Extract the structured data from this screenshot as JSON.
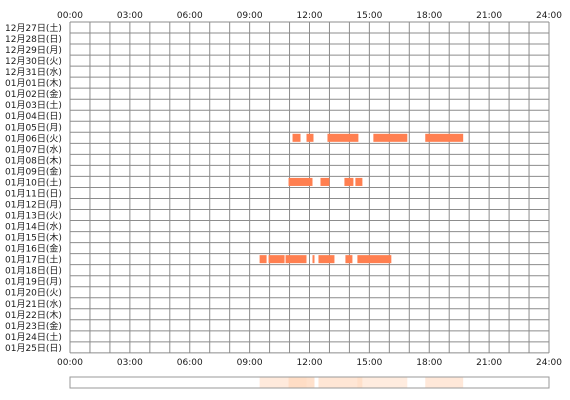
{
  "chart_data": {
    "type": "heatmap",
    "x_unit": "hours",
    "x_ticks": [
      "00:00",
      "03:00",
      "06:00",
      "09:00",
      "12:00",
      "15:00",
      "18:00",
      "21:00",
      "24:00"
    ],
    "xlim": [
      0,
      24
    ],
    "grid": true,
    "rows": [
      "12月27日(土)",
      "12月28日(日)",
      "12月29日(月)",
      "12月30日(火)",
      "12月31日(水)",
      "01月01日(木)",
      "01月02日(金)",
      "01月03日(土)",
      "01月04日(日)",
      "01月05日(月)",
      "01月06日(火)",
      "01月07日(水)",
      "01月08日(木)",
      "01月09日(金)",
      "01月10日(土)",
      "01月11日(日)",
      "01月12日(月)",
      "01月13日(火)",
      "01月14日(水)",
      "01月15日(木)",
      "01月16日(金)",
      "01月17日(土)",
      "01月18日(日)",
      "01月19日(月)",
      "01月20日(火)",
      "01月21日(水)",
      "01月22日(木)",
      "01月23日(金)",
      "01月24日(土)",
      "01月25日(日)"
    ],
    "activity_color": "#ff7f50",
    "summary_color": "#ffd9bf",
    "activity": [
      {
        "row": 10,
        "start": 11.15,
        "end": 11.55
      },
      {
        "row": 10,
        "start": 11.85,
        "end": 12.2
      },
      {
        "row": 10,
        "start": 12.9,
        "end": 14.45
      },
      {
        "row": 10,
        "start": 15.2,
        "end": 16.9
      },
      {
        "row": 10,
        "start": 17.8,
        "end": 19.7
      },
      {
        "row": 14,
        "start": 10.95,
        "end": 12.15
      },
      {
        "row": 14,
        "start": 12.55,
        "end": 13.0
      },
      {
        "row": 14,
        "start": 13.75,
        "end": 14.2
      },
      {
        "row": 14,
        "start": 14.3,
        "end": 14.65
      },
      {
        "row": 21,
        "start": 9.5,
        "end": 9.85
      },
      {
        "row": 21,
        "start": 9.95,
        "end": 10.75
      },
      {
        "row": 21,
        "start": 10.8,
        "end": 11.85
      },
      {
        "row": 21,
        "start": 12.15,
        "end": 12.25
      },
      {
        "row": 21,
        "start": 12.45,
        "end": 13.25
      },
      {
        "row": 21,
        "start": 13.8,
        "end": 14.15
      },
      {
        "row": 21,
        "start": 14.4,
        "end": 16.1
      }
    ],
    "summary": [
      {
        "start": 9.5,
        "end": 11.85,
        "opacity": 0.55
      },
      {
        "start": 10.95,
        "end": 12.25,
        "opacity": 0.8
      },
      {
        "start": 12.45,
        "end": 14.65,
        "opacity": 0.65
      },
      {
        "start": 14.4,
        "end": 16.9,
        "opacity": 0.5
      },
      {
        "start": 17.8,
        "end": 19.7,
        "opacity": 0.6
      }
    ]
  }
}
